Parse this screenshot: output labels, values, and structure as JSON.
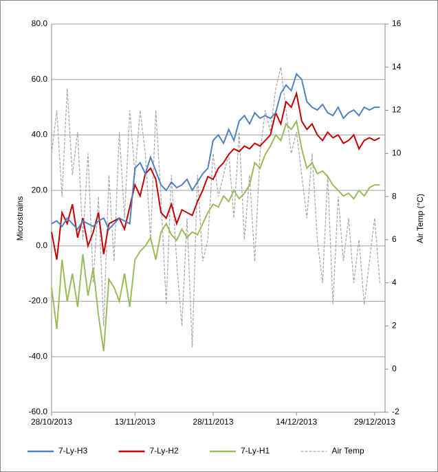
{
  "chart_data": {
    "type": "line",
    "y_label": "Microstrains",
    "y2_label": "Air Temp (°C)",
    "x": [
      "28/10/2013",
      "29/10/2013",
      "30/10/2013",
      "31/10/2013",
      "01/11/2013",
      "02/11/2013",
      "03/11/2013",
      "04/11/2013",
      "05/11/2013",
      "06/11/2013",
      "07/11/2013",
      "08/11/2013",
      "09/11/2013",
      "10/11/2013",
      "11/11/2013",
      "12/11/2013",
      "13/11/2013",
      "14/11/2013",
      "15/11/2013",
      "16/11/2013",
      "17/11/2013",
      "18/11/2013",
      "19/11/2013",
      "20/11/2013",
      "21/11/2013",
      "22/11/2013",
      "23/11/2013",
      "24/11/2013",
      "25/11/2013",
      "26/11/2013",
      "27/11/2013",
      "28/11/2013",
      "29/11/2013",
      "30/11/2013",
      "01/12/2013",
      "02/12/2013",
      "03/12/2013",
      "04/12/2013",
      "05/12/2013",
      "06/12/2013",
      "07/12/2013",
      "08/12/2013",
      "09/12/2013",
      "10/12/2013",
      "11/12/2013",
      "12/12/2013",
      "13/12/2013",
      "14/12/2013",
      "15/12/2013",
      "16/12/2013",
      "17/12/2013",
      "18/12/2013",
      "19/12/2013",
      "20/12/2013",
      "21/12/2013",
      "22/12/2013",
      "23/12/2013",
      "24/12/2013",
      "25/12/2013",
      "26/12/2013",
      "27/12/2013",
      "28/12/2013",
      "29/12/2013",
      "30/12/2013"
    ],
    "xlim": [
      "28/10/2013",
      "31/12/2013"
    ],
    "xticks": [
      "28/10/2013",
      "13/11/2013",
      "28/11/2013",
      "14/12/2013",
      "29/12/2013"
    ],
    "ylim": [
      -60,
      80
    ],
    "yticks": [
      {
        "value": -60,
        "label": "-60.0"
      },
      {
        "value": -40,
        "label": "-40.0"
      },
      {
        "value": -20,
        "label": "-20.0"
      },
      {
        "value": 0,
        "label": "0.0"
      },
      {
        "value": 20,
        "label": "20.0"
      },
      {
        "value": 40,
        "label": "40.0"
      },
      {
        "value": 60,
        "label": "60.0"
      },
      {
        "value": 80,
        "label": "80.0"
      }
    ],
    "y2lim": [
      -2,
      16
    ],
    "y2ticks": [
      -2,
      0,
      2,
      4,
      6,
      8,
      10,
      12,
      14,
      16
    ],
    "grid": true,
    "legend": "bottom",
    "series": [
      {
        "name": "7-Ly-H3",
        "color": "#4f81bd",
        "line_style": "solid",
        "values": [
          8,
          9,
          7,
          10,
          8,
          6,
          9,
          8,
          7,
          9,
          10,
          6,
          8,
          10,
          9,
          8,
          28,
          30,
          26,
          32,
          27,
          22,
          20,
          23,
          21,
          22,
          24,
          20,
          23,
          26,
          28,
          38,
          40,
          37,
          42,
          38,
          45,
          47,
          44,
          48,
          46,
          47,
          46,
          48,
          55,
          58,
          56,
          62,
          60,
          52,
          50,
          49,
          51,
          48,
          47,
          50,
          46,
          48,
          49,
          47,
          50,
          49,
          50,
          50
        ]
      },
      {
        "name": "7-Ly-H2",
        "color": "#c00000",
        "line_style": "solid",
        "values": [
          5,
          -5,
          12,
          8,
          15,
          3,
          10,
          0,
          5,
          12,
          -3,
          8,
          9,
          10,
          6,
          14,
          22,
          18,
          26,
          28,
          24,
          12,
          10,
          15,
          8,
          13,
          12,
          11,
          16,
          20,
          25,
          24,
          28,
          30,
          33,
          35,
          34,
          36,
          35,
          37,
          36,
          38,
          40,
          48,
          44,
          52,
          50,
          55,
          45,
          42,
          44,
          40,
          38,
          41,
          39,
          40,
          37,
          38,
          40,
          35,
          38,
          39,
          38,
          39
        ]
      },
      {
        "name": "7-Ly-H1",
        "color": "#9bbb59",
        "line_style": "solid",
        "values": [
          -15,
          -30,
          -5,
          -20,
          -10,
          -22,
          -3,
          -18,
          -8,
          -25,
          -38,
          -12,
          -15,
          -20,
          -10,
          -22,
          -5,
          -2,
          0,
          3,
          -5,
          5,
          8,
          4,
          2,
          6,
          3,
          5,
          4,
          8,
          12,
          15,
          14,
          18,
          16,
          20,
          17,
          19,
          22,
          30,
          28,
          33,
          36,
          40,
          38,
          44,
          42,
          45,
          35,
          28,
          30,
          26,
          27,
          25,
          22,
          20,
          18,
          19,
          17,
          20,
          18,
          21,
          22,
          22
        ]
      },
      {
        "name": "Air Temp",
        "color": "#a6a6a6",
        "line_style": "dashed",
        "axis": "y2",
        "values": [
          10,
          12,
          8,
          13,
          9,
          11,
          6,
          10,
          4,
          8,
          2,
          9,
          5,
          11,
          7,
          12,
          9,
          12,
          10,
          6,
          12,
          8,
          3,
          9,
          5,
          2,
          7,
          1,
          9,
          5,
          6,
          10,
          8,
          9,
          10,
          7,
          11,
          6,
          9,
          5,
          10,
          12,
          11,
          13,
          14,
          12,
          10,
          11,
          9,
          7,
          10,
          6,
          4,
          9,
          3,
          8,
          5,
          7,
          4,
          6,
          3,
          5,
          7,
          4
        ]
      }
    ]
  }
}
